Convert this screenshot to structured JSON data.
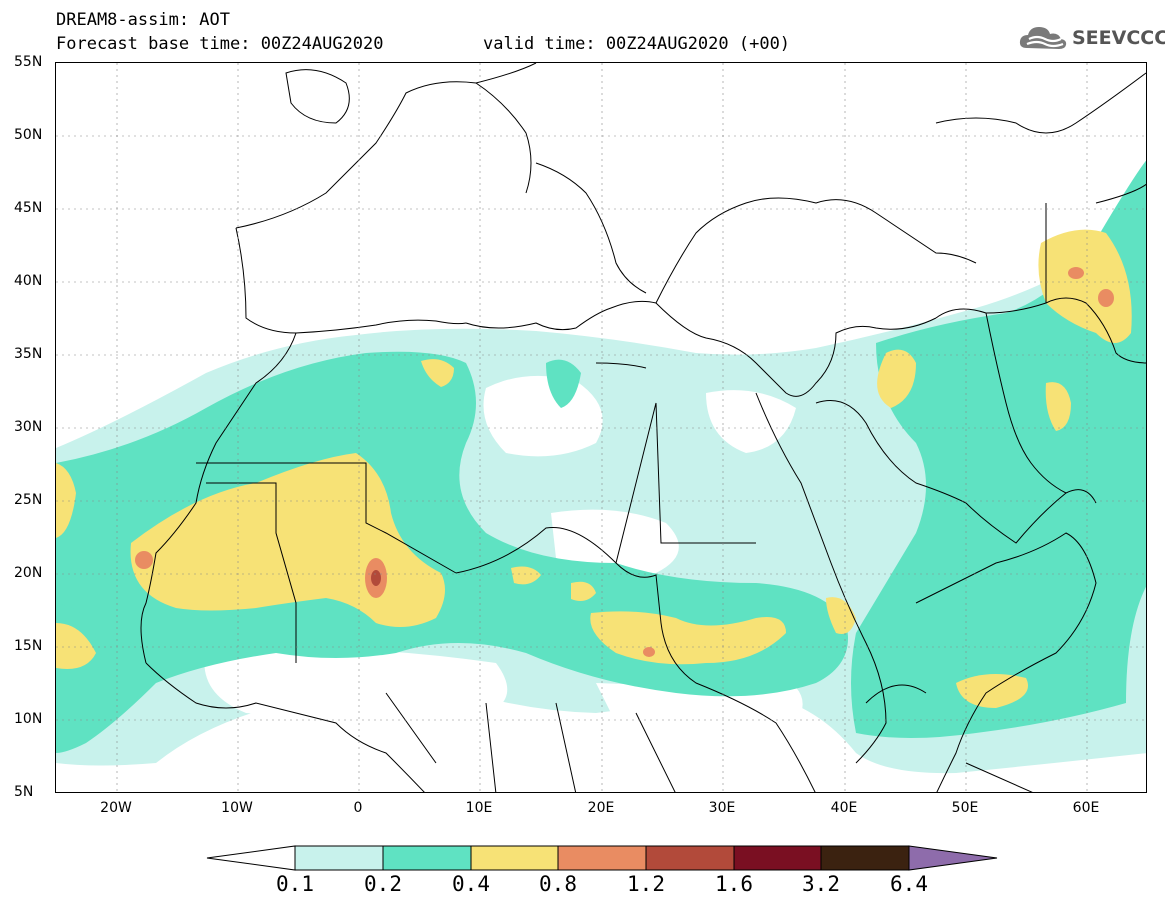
{
  "header": {
    "title": "DREAM8-assim: AOT",
    "base_time": "Forecast base time: 00Z24AUG2020",
    "valid_time": "valid time: 00Z24AUG2020 (+00)",
    "logo_text": "SEEVCCC",
    "logo_icon": "cloud-logo-icon"
  },
  "map": {
    "lat_labels": [
      "55N",
      "50N",
      "45N",
      "40N",
      "35N",
      "30N",
      "25N",
      "20N",
      "15N",
      "10N",
      "5N"
    ],
    "lon_labels": [
      "20W",
      "10W",
      "0",
      "10E",
      "20E",
      "30E",
      "40E",
      "50E",
      "60E"
    ],
    "lon_range": [
      -25,
      65
    ],
    "lat_range": [
      5,
      55
    ]
  },
  "colorbar": {
    "levels": [
      "0.1",
      "0.2",
      "0.4",
      "0.8",
      "1.2",
      "1.6",
      "3.2",
      "6.4"
    ],
    "colors": [
      "#c8f2ec",
      "#5fe2c2",
      "#f7e276",
      "#e98c62",
      "#b24a3a",
      "#7a0f22",
      "#3b2210"
    ],
    "under_color": "#ffffff",
    "over_color": "#8e6cab"
  }
}
